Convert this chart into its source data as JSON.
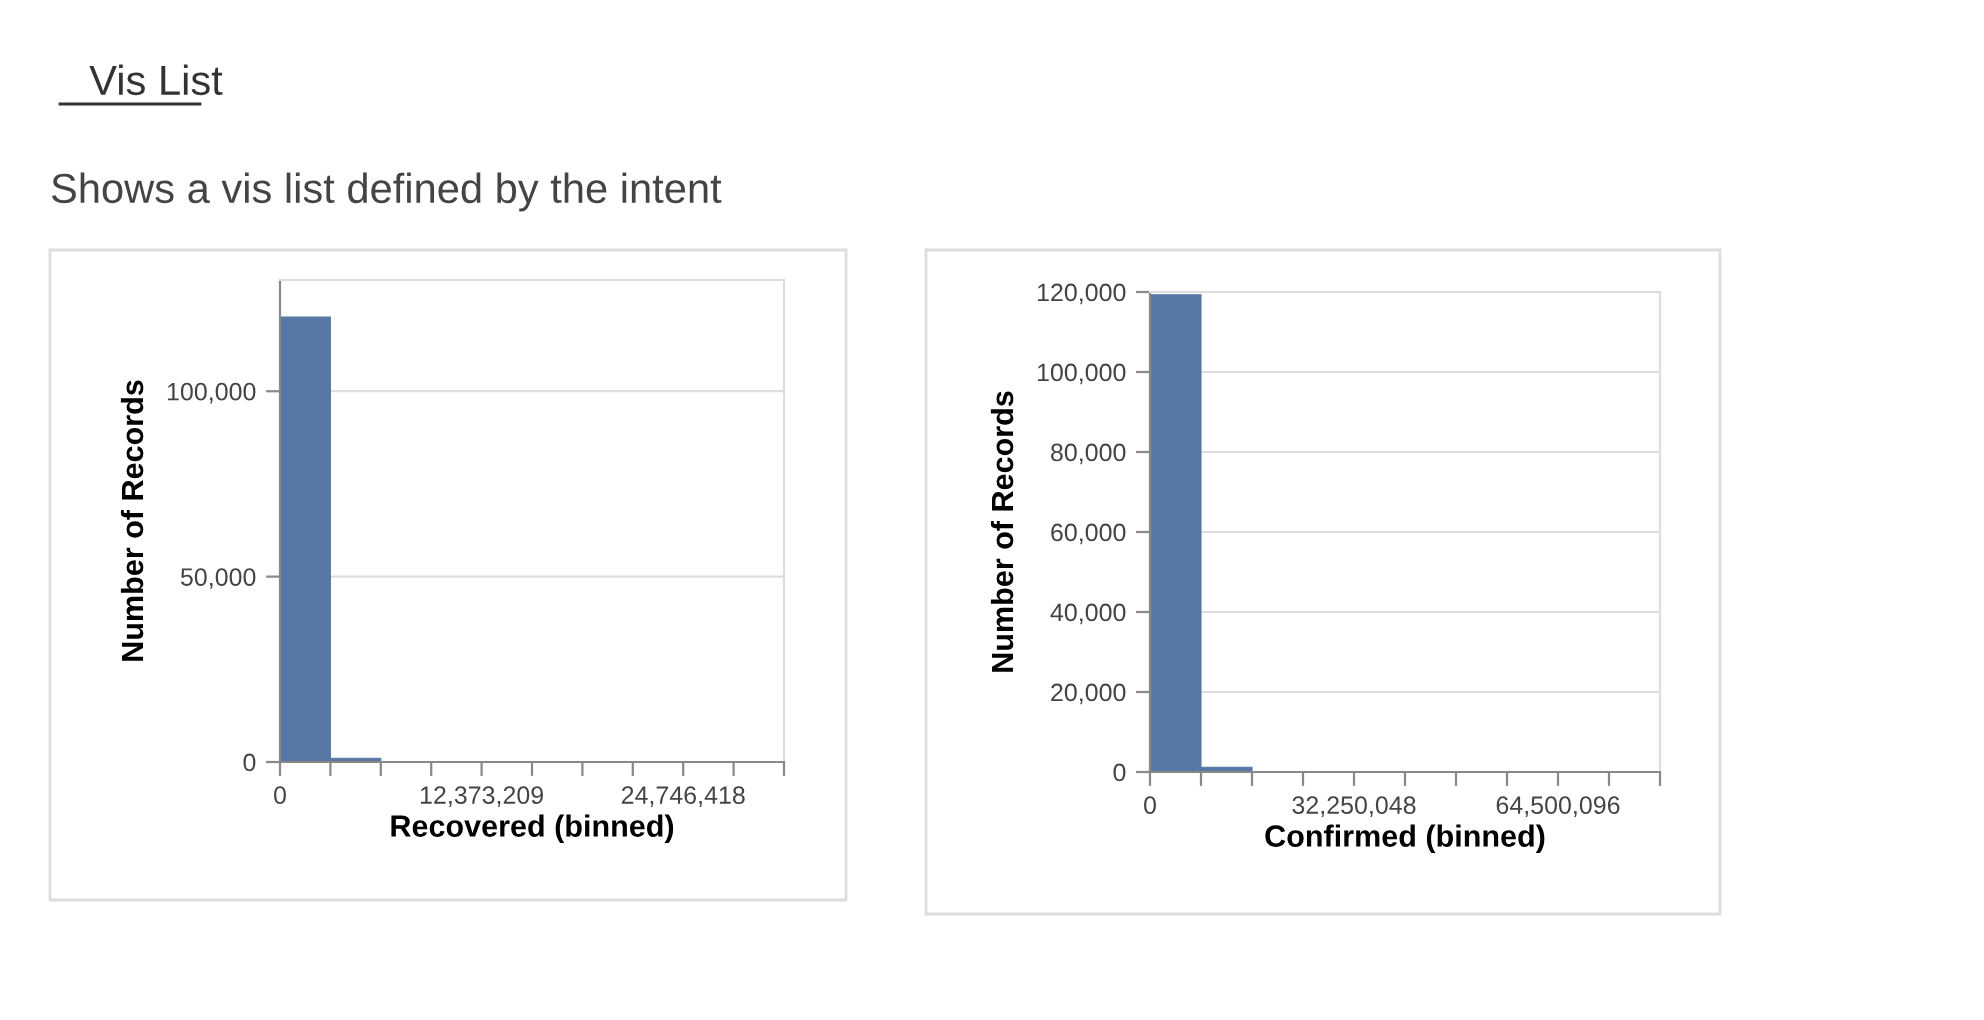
{
  "chart_data": [
    {
      "type": "histogram",
      "annotations": [
        "Vis List",
        "Shows a vis list defined by the intent"
      ],
      "xlabel": "Recovered (binned)",
      "ylabel": "Number of Records",
      "color": "#5778a4",
      "grid": "y",
      "bins": [
        0,
        3093302.25,
        6186604.5,
        9279906.75,
        12373209,
        15466511.25,
        18559813.5,
        21653115.75,
        24746418,
        27839720.25,
        30933022.5
      ],
      "values": [
        120000,
        1000,
        0,
        0,
        0,
        0,
        0,
        0,
        0,
        0
      ],
      "xlim": [
        0,
        30933022.5
      ],
      "xticks": [
        {
          "value": 0,
          "label": "0"
        },
        {
          "value": 3093302.25,
          "label": null
        },
        {
          "value": 6186604.5,
          "label": null
        },
        {
          "value": 9279906.75,
          "label": null
        },
        {
          "value": 12373209,
          "label": "12,373,209"
        },
        {
          "value": 15466511.25,
          "label": null
        },
        {
          "value": 18559813.5,
          "label": null
        },
        {
          "value": 21653115.75,
          "label": null
        },
        {
          "value": 24746418,
          "label": "24,746,418"
        },
        {
          "value": 27839720.25,
          "label": null
        },
        {
          "value": 30933022.5,
          "label": null
        }
      ],
      "ylim": [
        0,
        130000
      ],
      "yticks": [
        {
          "value": 0,
          "label": "0"
        },
        {
          "value": 50000,
          "label": "50,000"
        },
        {
          "value": 100000,
          "label": "100,000"
        }
      ]
    },
    {
      "type": "histogram",
      "xlabel": "Confirmed (binned)",
      "ylabel": "Number of Records",
      "color": "#5778a4",
      "grid": "y",
      "bins": [
        0,
        8062512,
        16125024,
        24187536,
        32250048,
        40312560,
        48375072,
        56437584,
        64500096,
        72562608,
        80625120
      ],
      "values": [
        119300,
        1200,
        null,
        null,
        null,
        0,
        0,
        0,
        0,
        0
      ],
      "xlim": [
        0,
        80625120
      ],
      "xticks": [
        {
          "value": 0,
          "label": "0"
        },
        {
          "value": 8062512,
          "label": null
        },
        {
          "value": 16125024,
          "label": null
        },
        {
          "value": 24187536,
          "label": null
        },
        {
          "value": 32250048,
          "label": "32,250,048"
        },
        {
          "value": 40312560,
          "label": null
        },
        {
          "value": 48375072,
          "label": null
        },
        {
          "value": 56437584,
          "label": null
        },
        {
          "value": 64500096,
          "label": "64,500,096"
        },
        {
          "value": 72562608,
          "label": null
        },
        {
          "value": 80625120,
          "label": null
        }
      ],
      "ylim": [
        0,
        120000
      ],
      "yticks": [
        {
          "value": 0,
          "label": "0"
        },
        {
          "value": 20000,
          "label": "20,000"
        },
        {
          "value": 40000,
          "label": "40,000"
        },
        {
          "value": 60000,
          "label": "60,000"
        },
        {
          "value": 80000,
          "label": "80,000"
        },
        {
          "value": 100000,
          "label": "100,000"
        },
        {
          "value": 120000,
          "label": "120,000"
        }
      ]
    }
  ]
}
